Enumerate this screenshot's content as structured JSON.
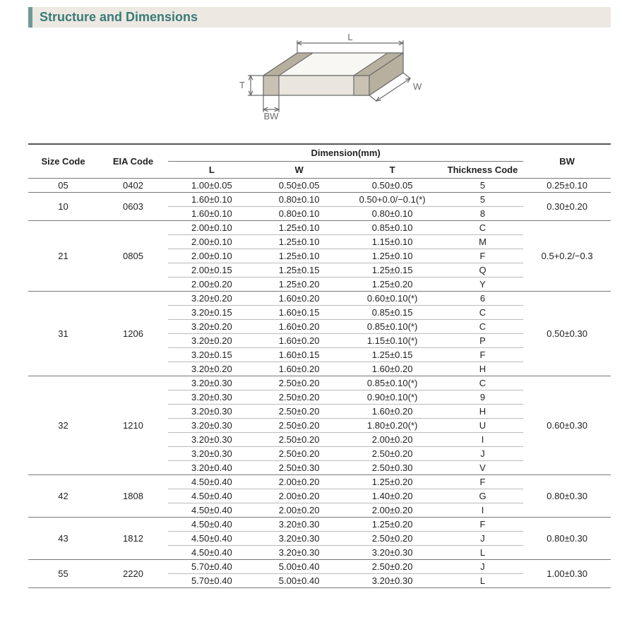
{
  "section_title": "Structure and Dimensions",
  "diagram": {
    "labels": {
      "L": "L",
      "W": "W",
      "T": "T",
      "BW": "BW"
    },
    "stroke": "#6b6b6b",
    "fill_top": "#f9f7f3",
    "fill_front": "#eae6df",
    "fill_side": "#d8d2c7",
    "fill_term_front": "#c9c2b4",
    "fill_term_side": "#b8b09f",
    "line_width": 1.2
  },
  "table": {
    "header": {
      "size_code": "Size Code",
      "eia_code": "EIA Code",
      "dimension": "Dimension(mm)",
      "L": "L",
      "W": "W",
      "T": "T",
      "thickness_code": "Thickness Code",
      "BW": "BW"
    },
    "columns_pct": {
      "size": 12,
      "eia": 12,
      "L": 15,
      "W": 15,
      "T": 17,
      "tc": 14,
      "bw": 15
    },
    "border_color_major": "#777777",
    "border_color_minor": "#bbbbbb",
    "font_size_pt": 10,
    "groups": [
      {
        "size": "05",
        "eia": "0402",
        "bw": "0.25±0.10",
        "rows": [
          {
            "L": "1.00±0.05",
            "W": "0.50±0.05",
            "T": "0.50±0.05",
            "tc": "5"
          }
        ]
      },
      {
        "size": "10",
        "eia": "0603",
        "bw": "0.30±0.20",
        "rows": [
          {
            "L": "1.60±0.10",
            "W": "0.80±0.10",
            "T": "0.50+0.0/−0.1(*)",
            "tc": "5"
          },
          {
            "L": "1.60±0.10",
            "W": "0.80±0.10",
            "T": "0.80±0.10",
            "tc": "8"
          }
        ]
      },
      {
        "size": "21",
        "eia": "0805",
        "bw": "0.5+0.2/−0.3",
        "rows": [
          {
            "L": "2.00±0.10",
            "W": "1.25±0.10",
            "T": "0.85±0.10",
            "tc": "C"
          },
          {
            "L": "2.00±0.10",
            "W": "1.25±0.10",
            "T": "1.15±0.10",
            "tc": "M"
          },
          {
            "L": "2.00±0.10",
            "W": "1.25±0.10",
            "T": "1.25±0.10",
            "tc": "F"
          },
          {
            "L": "2.00±0.15",
            "W": "1.25±0.15",
            "T": "1.25±0.15",
            "tc": "Q"
          },
          {
            "L": "2.00±0.20",
            "W": "1.25±0.20",
            "T": "1.25±0.20",
            "tc": "Y"
          }
        ]
      },
      {
        "size": "31",
        "eia": "1206",
        "bw": "0.50±0.30",
        "rows": [
          {
            "L": "3.20±0.20",
            "W": "1.60±0.20",
            "T": "0.60±0.10(*)",
            "tc": "6"
          },
          {
            "L": "3.20±0.15",
            "W": "1.60±0.15",
            "T": "0.85±0.15",
            "tc": "C"
          },
          {
            "L": "3.20±0.20",
            "W": "1.60±0.20",
            "T": "0.85±0.10(*)",
            "tc": "C"
          },
          {
            "L": "3.20±0.20",
            "W": "1.60±0.20",
            "T": "1.15±0.10(*)",
            "tc": "P"
          },
          {
            "L": "3.20±0.15",
            "W": "1.60±0.15",
            "T": "1.25±0.15",
            "tc": "F"
          },
          {
            "L": "3.20±0.20",
            "W": "1.60±0.20",
            "T": "1.60±0.20",
            "tc": "H"
          }
        ]
      },
      {
        "size": "32",
        "eia": "1210",
        "bw": "0.60±0.30",
        "rows": [
          {
            "L": "3.20±0.30",
            "W": "2.50±0.20",
            "T": "0.85±0.10(*)",
            "tc": "C"
          },
          {
            "L": "3.20±0.30",
            "W": "2.50±0.20",
            "T": "0.90±0.10(*)",
            "tc": "9"
          },
          {
            "L": "3.20±0.30",
            "W": "2.50±0.20",
            "T": "1.60±0.20",
            "tc": "H"
          },
          {
            "L": "3.20±0.30",
            "W": "2.50±0.20",
            "T": "1.80±0.20(*)",
            "tc": "U"
          },
          {
            "L": "3.20±0.30",
            "W": "2.50±0.20",
            "T": "2.00±0.20",
            "tc": "I"
          },
          {
            "L": "3.20±0.30",
            "W": "2.50±0.20",
            "T": "2.50±0.20",
            "tc": "J"
          },
          {
            "L": "3.20±0.40",
            "W": "2.50±0.30",
            "T": "2.50±0.30",
            "tc": "V"
          }
        ]
      },
      {
        "size": "42",
        "eia": "1808",
        "bw": "0.80±0.30",
        "rows": [
          {
            "L": "4.50±0.40",
            "W": "2.00±0.20",
            "T": "1.25±0.20",
            "tc": "F"
          },
          {
            "L": "4.50±0.40",
            "W": "2.00±0.20",
            "T": "1.40±0.20",
            "tc": "G"
          },
          {
            "L": "4.50±0.40",
            "W": "2.00±0.20",
            "T": "2.00±0.20",
            "tc": "I"
          }
        ]
      },
      {
        "size": "43",
        "eia": "1812",
        "bw": "0.80±0.30",
        "rows": [
          {
            "L": "4.50±0.40",
            "W": "3.20±0.30",
            "T": "1.25±0.20",
            "tc": "F"
          },
          {
            "L": "4.50±0.40",
            "W": "3.20±0.30",
            "T": "2.50±0.20",
            "tc": "J"
          },
          {
            "L": "4.50±0.40",
            "W": "3.20±0.30",
            "T": "3.20±0.30",
            "tc": "L"
          }
        ]
      },
      {
        "size": "55",
        "eia": "2220",
        "bw": "1.00±0.30",
        "rows": [
          {
            "L": "5.70±0.40",
            "W": "5.00±0.40",
            "T": "2.50±0.20",
            "tc": "J"
          },
          {
            "L": "5.70±0.40",
            "W": "5.00±0.40",
            "T": "3.20±0.30",
            "tc": "L"
          }
        ]
      }
    ]
  }
}
